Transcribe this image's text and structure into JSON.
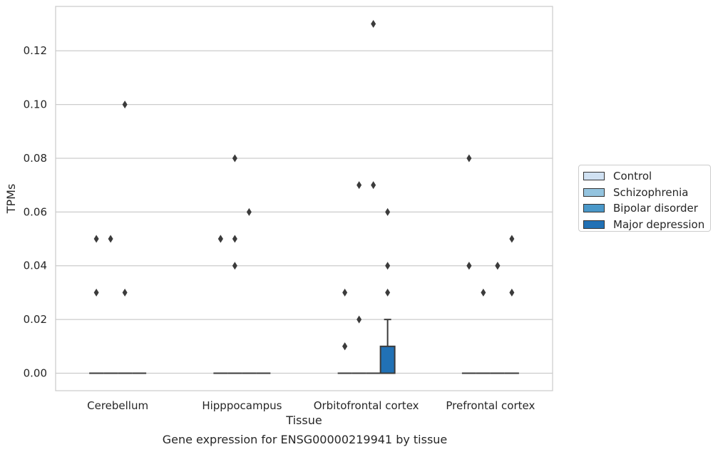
{
  "chart_data": {
    "type": "box",
    "title": "",
    "caption": "Gene expression for ENSG00000219941 by tissue",
    "xlabel": "Tissue",
    "ylabel": "TPMs",
    "ylim": [
      -0.0065,
      0.1365
    ],
    "yticks": [
      0.0,
      0.02,
      0.04,
      0.06,
      0.08,
      0.1,
      0.12
    ],
    "ytick_labels": [
      "0.00",
      "0.02",
      "0.04",
      "0.06",
      "0.08",
      "0.10",
      "0.12"
    ],
    "grid": "horizontal",
    "legend_position": "right",
    "categories": [
      "Cerebellum",
      "Hipppocampus",
      "Orbitofrontal cortex",
      "Prefrontal cortex"
    ],
    "series": [
      {
        "name": "Control",
        "color": "#d0e1f2",
        "boxes": [
          {
            "q1": 0,
            "median": 0,
            "q3": 0,
            "whisker_low": 0,
            "whisker_high": 0,
            "outliers": [
              0.05,
              0.03
            ]
          },
          {
            "q1": 0,
            "median": 0,
            "q3": 0,
            "whisker_low": 0,
            "whisker_high": 0,
            "outliers": [
              0.05,
              0.05
            ]
          },
          {
            "q1": 0,
            "median": 0,
            "q3": 0,
            "whisker_low": 0,
            "whisker_high": 0,
            "outliers": [
              0.03,
              0.01,
              0.01
            ]
          },
          {
            "q1": 0,
            "median": 0,
            "q3": 0,
            "whisker_low": 0,
            "whisker_high": 0,
            "outliers": [
              0.08,
              0.04,
              0.04
            ]
          }
        ]
      },
      {
        "name": "Schizophrenia",
        "color": "#94c4df",
        "boxes": [
          {
            "q1": 0,
            "median": 0,
            "q3": 0,
            "whisker_low": 0,
            "whisker_high": 0,
            "outliers": [
              0.05
            ]
          },
          {
            "q1": 0,
            "median": 0,
            "q3": 0,
            "whisker_low": 0,
            "whisker_high": 0,
            "outliers": [
              0.08,
              0.05,
              0.04
            ]
          },
          {
            "q1": 0,
            "median": 0,
            "q3": 0,
            "whisker_low": 0,
            "whisker_high": 0,
            "outliers": [
              0.07,
              0.02
            ]
          },
          {
            "q1": 0,
            "median": 0,
            "q3": 0,
            "whisker_low": 0,
            "whisker_high": 0,
            "outliers": [
              0.03
            ]
          }
        ]
      },
      {
        "name": "Bipolar disorder",
        "color": "#4a98c9",
        "boxes": [
          {
            "q1": 0,
            "median": 0,
            "q3": 0,
            "whisker_low": 0,
            "whisker_high": 0,
            "outliers": [
              0.1,
              0.03
            ]
          },
          {
            "q1": 0,
            "median": 0,
            "q3": 0,
            "whisker_low": 0,
            "whisker_high": 0,
            "outliers": [
              0.06
            ]
          },
          {
            "q1": 0,
            "median": 0,
            "q3": 0,
            "whisker_low": 0,
            "whisker_high": 0,
            "outliers": [
              0.13,
              0.07
            ]
          },
          {
            "q1": 0,
            "median": 0,
            "q3": 0,
            "whisker_low": 0,
            "whisker_high": 0,
            "outliers": [
              0.04,
              0.04
            ]
          }
        ]
      },
      {
        "name": "Major depression",
        "color": "#2171b5",
        "boxes": [
          {
            "q1": 0,
            "median": 0,
            "q3": 0,
            "whisker_low": 0,
            "whisker_high": 0,
            "outliers": []
          },
          {
            "q1": 0,
            "median": 0,
            "q3": 0,
            "whisker_low": 0,
            "whisker_high": 0,
            "outliers": []
          },
          {
            "q1": 0,
            "median": 0,
            "q3": 0.01,
            "whisker_low": 0,
            "whisker_high": 0.02,
            "outliers": [
              0.06,
              0.04,
              0.03
            ]
          },
          {
            "q1": 0,
            "median": 0,
            "q3": 0,
            "whisker_low": 0,
            "whisker_high": 0,
            "outliers": [
              0.05,
              0.03
            ]
          }
        ]
      }
    ]
  },
  "legend": {
    "items": [
      {
        "label": "Control",
        "color": "#d0e1f2"
      },
      {
        "label": "Schizophrenia",
        "color": "#94c4df"
      },
      {
        "label": "Bipolar disorder",
        "color": "#4a98c9"
      },
      {
        "label": "Major depression",
        "color": "#2171b5"
      }
    ]
  }
}
